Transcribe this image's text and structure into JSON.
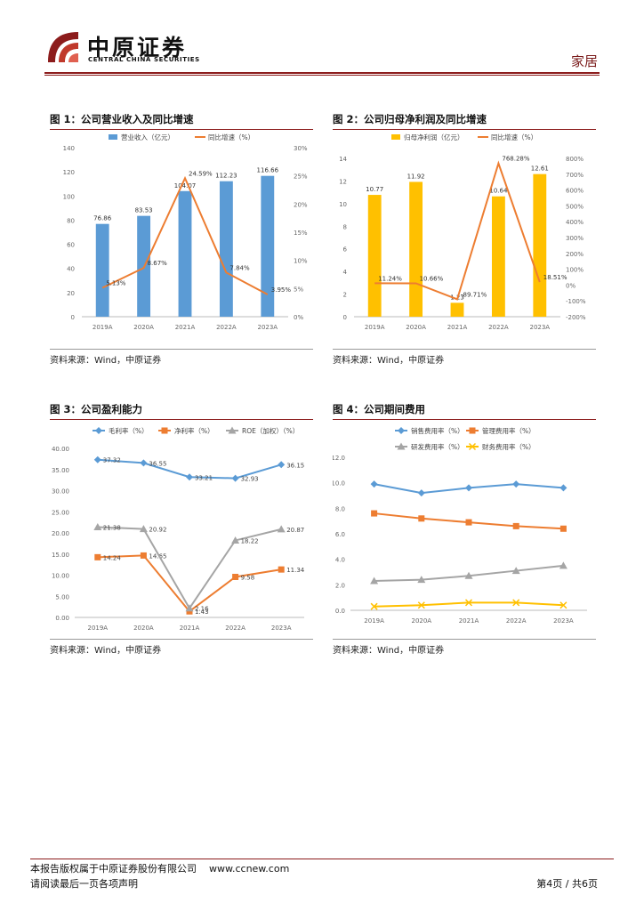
{
  "header": {
    "company_cn": "中原证券",
    "company_en": "CENTRAL CHINA SECURITIES",
    "sector": "家居"
  },
  "footer": {
    "copyright": "本报告版权属于中原证券股份有限公司",
    "url": "www.ccnew.com",
    "read_notice": "请阅读最后一页各项声明",
    "page": "第4页 / 共6页"
  },
  "colors": {
    "brand": "#8c1c1c",
    "blue": "#5b9bd5",
    "orange": "#ed7d31",
    "gold": "#ffc000",
    "gray": "#a5a5a5"
  },
  "figures": [
    {
      "title": "图 1：公司营业收入及同比增速",
      "source": "资料来源：Wind，中原证券",
      "chart_data": {
        "type": "bar",
        "categories": [
          "2019A",
          "2020A",
          "2021A",
          "2022A",
          "2023A"
        ],
        "series": [
          {
            "name": "营业收入（亿元）",
            "type": "bar",
            "axis": "left",
            "values": [
              76.86,
              83.53,
              104.07,
              112.23,
              116.66
            ],
            "labels": [
              "76.86",
              "83.53",
              "104.07",
              "112.23",
              "116.66"
            ]
          },
          {
            "name": "同比增速（%）",
            "type": "line",
            "axis": "right",
            "values": [
              5.13,
              8.67,
              24.59,
              7.84,
              3.95
            ],
            "labels": [
              "5.13%",
              "8.67%",
              "24.59%",
              "7.84%",
              "3.95%"
            ]
          }
        ],
        "ylim": [
          0,
          140
        ],
        "yticks": [
          "0",
          "20",
          "40",
          "60",
          "80",
          "100",
          "120",
          "140"
        ],
        "y2lim": [
          0,
          30
        ],
        "y2ticks": [
          "0%",
          "5%",
          "10%",
          "15%",
          "20%",
          "25%",
          "30%"
        ],
        "legend": "top"
      }
    },
    {
      "title": "图 2：公司归母净利润及同比增速",
      "source": "资料来源：Wind，中原证券",
      "chart_data": {
        "type": "bar",
        "categories": [
          "2019A",
          "2020A",
          "2021A",
          "2022A",
          "2023A"
        ],
        "series": [
          {
            "name": "归母净利润（亿元）",
            "type": "bar",
            "axis": "left",
            "values": [
              10.77,
              11.92,
              1.23,
              10.64,
              12.61
            ],
            "labels": [
              "10.77",
              "11.92",
              "1.23",
              "10.64",
              "12.61"
            ]
          },
          {
            "name": "同比增速（%）",
            "type": "line",
            "axis": "right",
            "values": [
              11.24,
              10.66,
              -89.71,
              768.28,
              18.51
            ],
            "labels": [
              "11.24%",
              "10.66%",
              "-89.71%",
              "768.28%",
              "18.51%"
            ]
          }
        ],
        "ylim": [
          0,
          14
        ],
        "yticks": [
          "0",
          "2",
          "4",
          "6",
          "8",
          "10",
          "12",
          "14"
        ],
        "y2lim": [
          -200,
          800
        ],
        "y2ticks": [
          "-200%",
          "-100%",
          "0%",
          "100%",
          "200%",
          "300%",
          "400%",
          "500%",
          "600%",
          "700%",
          "800%"
        ],
        "legend": "top"
      }
    },
    {
      "title": "图 3：公司盈利能力",
      "source": "资料来源：Wind，中原证券",
      "chart_data": {
        "type": "line",
        "categories": [
          "2019A",
          "2020A",
          "2021A",
          "2022A",
          "2023A"
        ],
        "series": [
          {
            "name": "毛利率（%）",
            "marker": "diamond",
            "values": [
              37.32,
              36.55,
              33.21,
              32.93,
              36.15
            ],
            "labels": [
              "37.32",
              "36.55",
              "33.21",
              "32.93",
              "36.15"
            ]
          },
          {
            "name": "净利率（%）",
            "marker": "square",
            "values": [
              14.24,
              14.65,
              1.43,
              9.58,
              11.34
            ],
            "labels": [
              "14.24",
              "14.65",
              "1.43",
              "9.58",
              "11.34"
            ]
          },
          {
            "name": "ROE（加权）（%）",
            "marker": "triangle",
            "values": [
              21.38,
              20.92,
              2.16,
              18.22,
              20.87
            ],
            "labels": [
              "21.38",
              "20.92",
              "2.16",
              "18.22",
              "20.87"
            ]
          }
        ],
        "ylim": [
          0,
          40
        ],
        "yticks": [
          "0.00",
          "5.00",
          "10.00",
          "15.00",
          "20.00",
          "25.00",
          "30.00",
          "35.00",
          "40.00"
        ],
        "legend": "top"
      }
    },
    {
      "title": "图 4：公司期间费用",
      "source": "资料来源：Wind，中原证券",
      "chart_data": {
        "type": "line",
        "categories": [
          "2019A",
          "2020A",
          "2021A",
          "2022A",
          "2023A"
        ],
        "series": [
          {
            "name": "销售费用率（%）",
            "marker": "diamond",
            "values": [
              9.9,
              9.2,
              9.6,
              9.9,
              9.6
            ]
          },
          {
            "name": "管理费用率（%）",
            "marker": "square",
            "values": [
              7.6,
              7.2,
              6.9,
              6.6,
              6.4
            ]
          },
          {
            "name": "研发费用率（%）",
            "marker": "triangle",
            "values": [
              2.3,
              2.4,
              2.7,
              3.1,
              3.5
            ]
          },
          {
            "name": "财务费用率（%）",
            "marker": "x",
            "values": [
              0.3,
              0.4,
              0.6,
              0.6,
              0.4
            ]
          }
        ],
        "ylim": [
          0,
          12
        ],
        "yticks": [
          "0.0",
          "2.0",
          "4.0",
          "6.0",
          "8.0",
          "10.0",
          "12.0"
        ],
        "legend": "top"
      }
    }
  ]
}
